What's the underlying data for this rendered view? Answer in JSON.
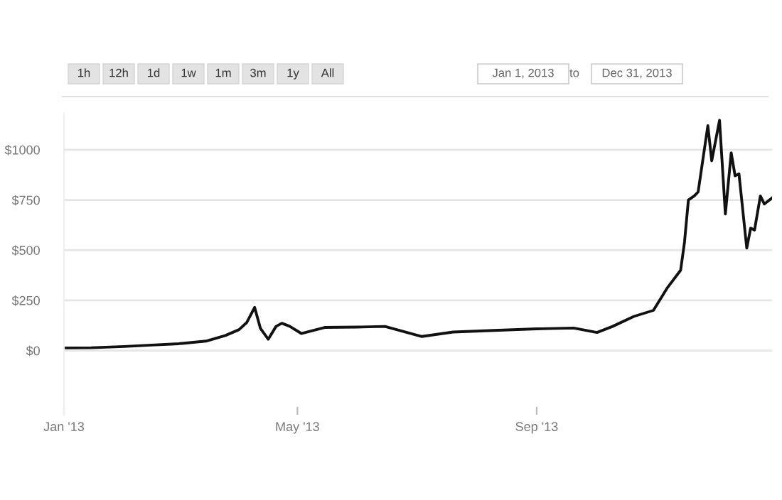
{
  "chart_data": {
    "type": "line",
    "x": [
      "2013-01-01",
      "2013-01-15",
      "2013-02-01",
      "2013-02-15",
      "2013-03-01",
      "2013-03-15",
      "2013-03-25",
      "2013-04-01",
      "2013-04-05",
      "2013-04-09",
      "2013-04-12",
      "2013-04-16",
      "2013-04-20",
      "2013-04-23",
      "2013-04-27",
      "2013-05-03",
      "2013-05-15",
      "2013-06-01",
      "2013-06-15",
      "2013-07-04",
      "2013-07-20",
      "2013-08-10",
      "2013-09-01",
      "2013-09-20",
      "2013-10-02",
      "2013-10-10",
      "2013-10-21",
      "2013-10-31",
      "2013-11-07",
      "2013-11-14",
      "2013-11-16",
      "2013-11-18",
      "2013-11-21",
      "2013-11-23",
      "2013-11-28",
      "2013-11-30",
      "2013-12-04",
      "2013-12-07",
      "2013-12-10",
      "2013-12-12",
      "2013-12-14",
      "2013-12-18",
      "2013-12-20",
      "2013-12-22",
      "2013-12-25",
      "2013-12-27",
      "2013-12-31"
    ],
    "series": [
      {
        "color": "#111111",
        "values": [
          13,
          14,
          20,
          27,
          34,
          47,
          75,
          104,
          140,
          215,
          110,
          56,
          120,
          136,
          121,
          85,
          115,
          117,
          120,
          70,
          92,
          100,
          108,
          112,
          90,
          120,
          170,
          200,
          310,
          400,
          540,
          750,
          770,
          790,
          1120,
          945,
          1147,
          680,
          985,
          870,
          880,
          510,
          610,
          600,
          770,
          730,
          760
        ]
      }
    ],
    "ylim": [
      -320,
      1180
    ],
    "yticks": [
      {
        "value": 0,
        "label": "$0"
      },
      {
        "value": 250,
        "label": "$250"
      },
      {
        "value": 500,
        "label": "$500"
      },
      {
        "value": 750,
        "label": "$750"
      },
      {
        "value": 1000,
        "label": "$1000"
      }
    ],
    "xlim": [
      "2013-01-01",
      "2013-12-31"
    ],
    "xticks": [
      {
        "value": "2013-01-01",
        "label": "Jan '13"
      },
      {
        "value": "2013-05-01",
        "label": "May '13"
      },
      {
        "value": "2013-09-01",
        "label": "Sep '13"
      }
    ],
    "grid": "y",
    "marker": "none",
    "line_style": "solid",
    "annotations": [
      "1h",
      "12h",
      "1d",
      "1w",
      "1m",
      "3m",
      "1y",
      "All",
      "Jan 1, 2013",
      "to",
      "Dec 31, 2013"
    ]
  }
}
